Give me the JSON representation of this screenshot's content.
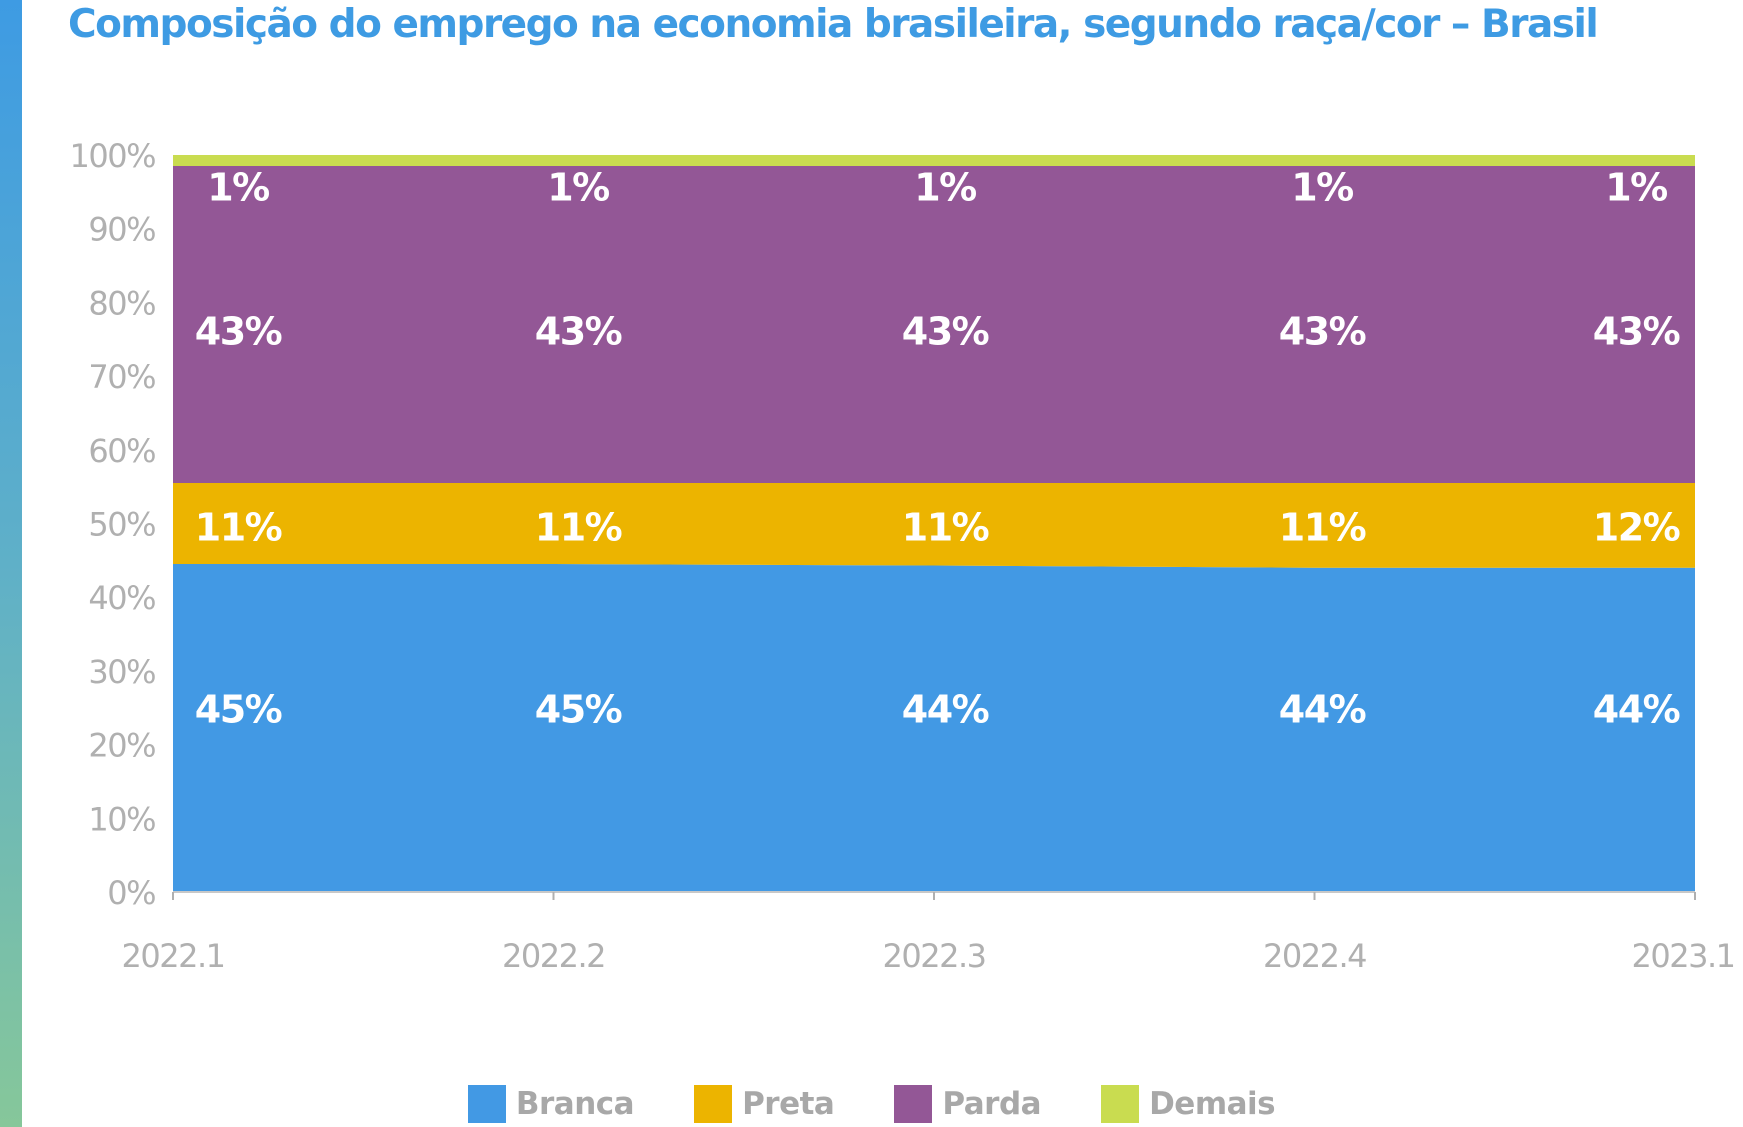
{
  "title": "Composição do emprego na economia brasileira, segundo raça/cor – Brasil",
  "chart_data": {
    "type": "area",
    "stacked": true,
    "title": "Composição do emprego na economia brasileira, segundo raça/cor – Brasil",
    "x": [
      "2022.1",
      "2022.2",
      "2022.3",
      "2022.4",
      "2023.1"
    ],
    "ylim": [
      0,
      100
    ],
    "y_ticks": [
      "0%",
      "10%",
      "20%",
      "30%",
      "40%",
      "50%",
      "60%",
      "70%",
      "80%",
      "90%",
      "100%"
    ],
    "grid": false,
    "legend_position": "bottom",
    "series": [
      {
        "name": "Branca",
        "color": "#4299e4",
        "values": [
          44.5,
          44.5,
          44.3,
          44.0,
          44.0
        ],
        "labels": [
          "45%",
          "45%",
          "44%",
          "44%",
          "44%"
        ]
      },
      {
        "name": "Preta",
        "color": "#ecb400",
        "values": [
          11.0,
          11.0,
          11.2,
          11.5,
          11.5
        ],
        "labels": [
          "11%",
          "11%",
          "11%",
          "11%",
          "12%"
        ]
      },
      {
        "name": "Parda",
        "color": "#935796",
        "values": [
          43.0,
          43.0,
          43.0,
          43.0,
          43.0
        ],
        "labels": [
          "43%",
          "43%",
          "43%",
          "43%",
          "43%"
        ]
      },
      {
        "name": "Demais",
        "color": "#c9dc50",
        "values": [
          1.5,
          1.5,
          1.5,
          1.5,
          1.5
        ],
        "labels": [
          "1%",
          "1%",
          "1%",
          "1%",
          "1%"
        ]
      }
    ]
  }
}
